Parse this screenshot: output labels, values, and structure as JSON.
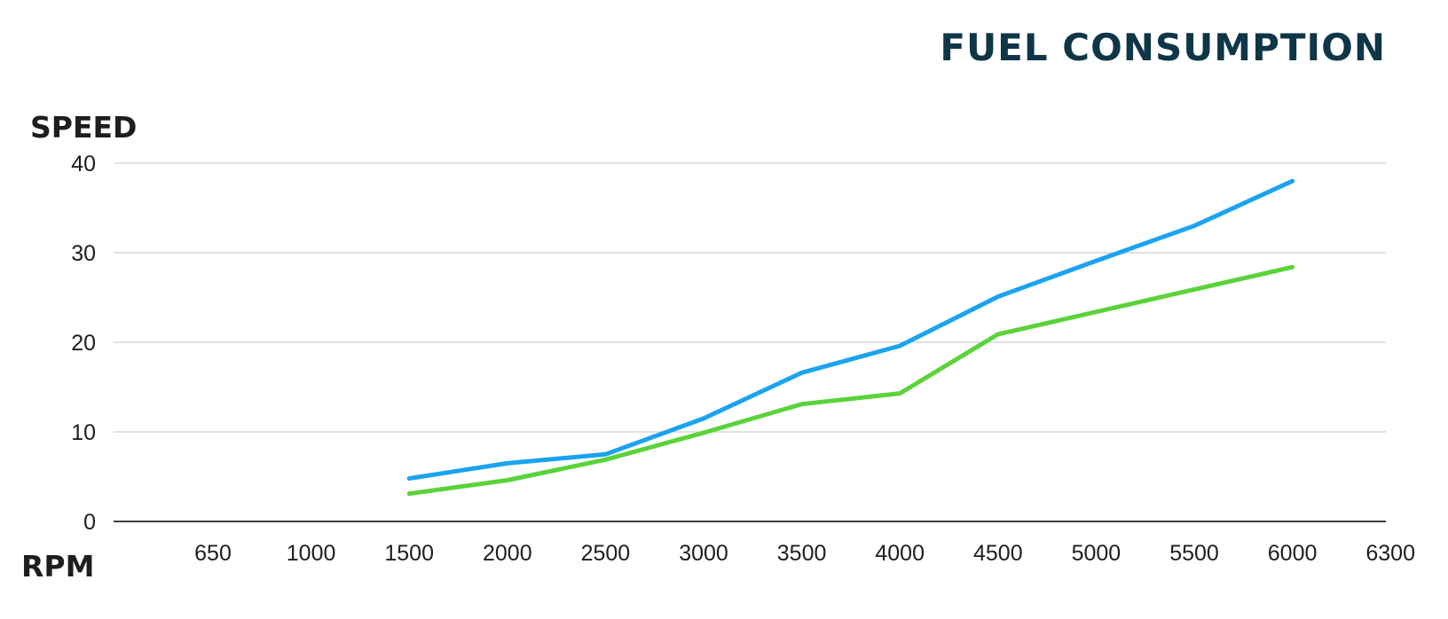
{
  "chart_data": {
    "type": "line",
    "title": "FUEL CONSUMPTION",
    "ylabel": "SPEED",
    "xlabel": "RPM",
    "categories": [
      "650",
      "1000",
      "1500",
      "2000",
      "2500",
      "3000",
      "3500",
      "4000",
      "4500",
      "5000",
      "5500",
      "6000",
      "6300"
    ],
    "ylim": [
      0,
      40
    ],
    "yticks": [
      0,
      10,
      20,
      30,
      40
    ],
    "grid": true,
    "series": [
      {
        "color": "#1aa3f0",
        "values": [
          null,
          null,
          4.8,
          6.5,
          7.5,
          11.5,
          16.6,
          19.6,
          25.1,
          29.1,
          33.0,
          38.0,
          null
        ]
      },
      {
        "color": "#5ad33a",
        "values": [
          null,
          null,
          3.1,
          4.6,
          6.9,
          9.9,
          13.1,
          14.3,
          20.9,
          23.4,
          25.9,
          28.4,
          null
        ]
      }
    ]
  }
}
